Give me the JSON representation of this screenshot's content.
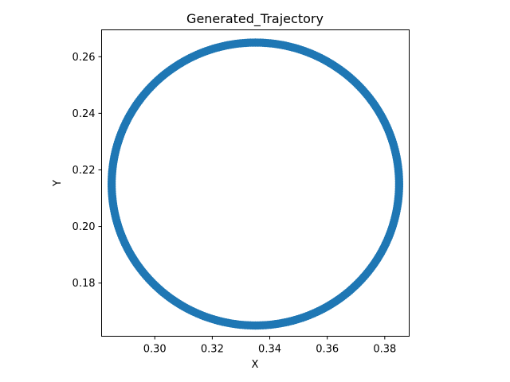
{
  "chart_data": {
    "type": "scatter",
    "title": "Generated_Trajectory",
    "xlabel": "X",
    "ylabel": "Y",
    "xlim": [
      0.2815,
      0.3885
    ],
    "ylim": [
      0.1612,
      0.2695
    ],
    "x_ticks": [
      0.3,
      0.32,
      0.34,
      0.36,
      0.38
    ],
    "x_tick_labels": [
      "0.30",
      "0.32",
      "0.34",
      "0.36",
      "0.38"
    ],
    "y_ticks": [
      0.18,
      0.2,
      0.22,
      0.24,
      0.26
    ],
    "y_tick_labels": [
      "0.18",
      "0.20",
      "0.22",
      "0.24",
      "0.26"
    ],
    "grid": false,
    "marker_color": "#1f77b4",
    "series": [
      {
        "shape": "circle",
        "center": [
          0.335,
          0.215
        ],
        "radius": 0.05,
        "points": 360
      }
    ]
  }
}
